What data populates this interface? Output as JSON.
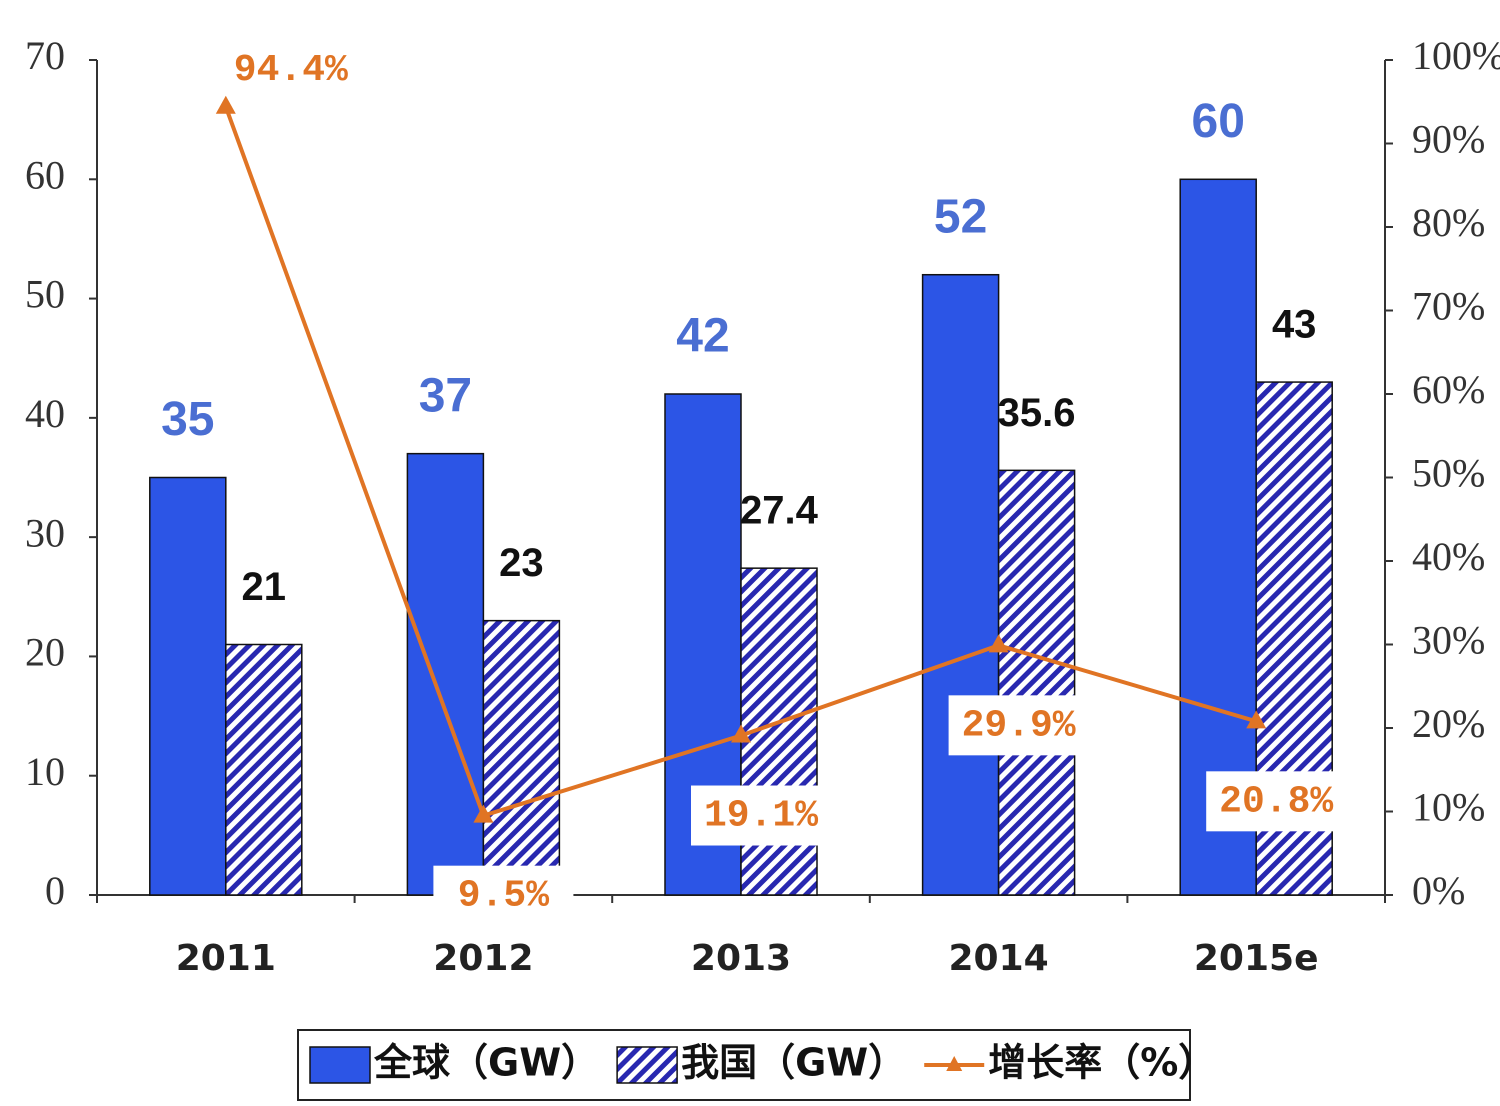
{
  "chart_data": {
    "type": "bar",
    "categories": [
      "2011",
      "2012",
      "2013",
      "2014",
      "2015e"
    ],
    "series": [
      {
        "name": "全球（GW）",
        "type": "bar",
        "color": "#2c55e6",
        "label_color": "#4a6ed2",
        "values": [
          35,
          37,
          42,
          52,
          60
        ]
      },
      {
        "name": "我国（GW）",
        "type": "bar",
        "color": "#2828b0",
        "hatch": true,
        "label_color": "#111111",
        "values": [
          21,
          23,
          27.4,
          35.6,
          43
        ]
      },
      {
        "name": "增长率（%）",
        "type": "line",
        "axis": "y2",
        "color": "#e07424",
        "label_color": "#e07424",
        "values": [
          94.4,
          9.5,
          19.1,
          29.9,
          20.8
        ],
        "value_labels": [
          "94.4%",
          "9.5%",
          "19.1%",
          "29.9%",
          "20.8%"
        ]
      }
    ],
    "ylim": [
      0,
      70
    ],
    "yticks": [
      0,
      10,
      20,
      30,
      40,
      50,
      60,
      70
    ],
    "y2lim": [
      0,
      100
    ],
    "y2ticks": [
      {
        "value": 0,
        "label": "0%"
      },
      {
        "value": 10,
        "label": "10%"
      },
      {
        "value": 20,
        "label": "20%"
      },
      {
        "value": 30,
        "label": "30%"
      },
      {
        "value": 40,
        "label": "40%"
      },
      {
        "value": 50,
        "label": "50%"
      },
      {
        "value": 60,
        "label": "60%"
      },
      {
        "value": 70,
        "label": "70%"
      },
      {
        "value": 80,
        "label": "80%"
      },
      {
        "value": 90,
        "label": "90%"
      },
      {
        "value": 100,
        "label": "100%"
      }
    ],
    "legend": "bottom"
  }
}
